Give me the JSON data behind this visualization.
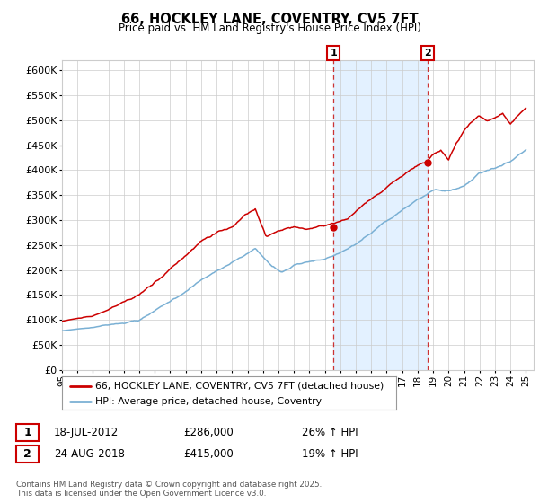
{
  "title": "66, HOCKLEY LANE, COVENTRY, CV5 7FT",
  "subtitle": "Price paid vs. HM Land Registry's House Price Index (HPI)",
  "legend_line1": "66, HOCKLEY LANE, COVENTRY, CV5 7FT (detached house)",
  "legend_line2": "HPI: Average price, detached house, Coventry",
  "annotation1_date": "18-JUL-2012",
  "annotation1_price": "£286,000",
  "annotation1_hpi": "26% ↑ HPI",
  "annotation2_date": "24-AUG-2018",
  "annotation2_price": "£415,000",
  "annotation2_hpi": "19% ↑ HPI",
  "footer": "Contains HM Land Registry data © Crown copyright and database right 2025.\nThis data is licensed under the Open Government Licence v3.0.",
  "red_color": "#cc0000",
  "blue_color": "#7ab0d4",
  "shaded_color": "#ddeeff",
  "vline_color": "#cc3333",
  "grid_color": "#cccccc",
  "bg_color": "#ffffff",
  "ylim": [
    0,
    620000
  ],
  "yticks": [
    0,
    50000,
    100000,
    150000,
    200000,
    250000,
    300000,
    350000,
    400000,
    450000,
    500000,
    550000,
    600000
  ],
  "year_start": 1995,
  "year_end": 2025,
  "annotation1_year": 2012.55,
  "annotation2_year": 2018.65
}
